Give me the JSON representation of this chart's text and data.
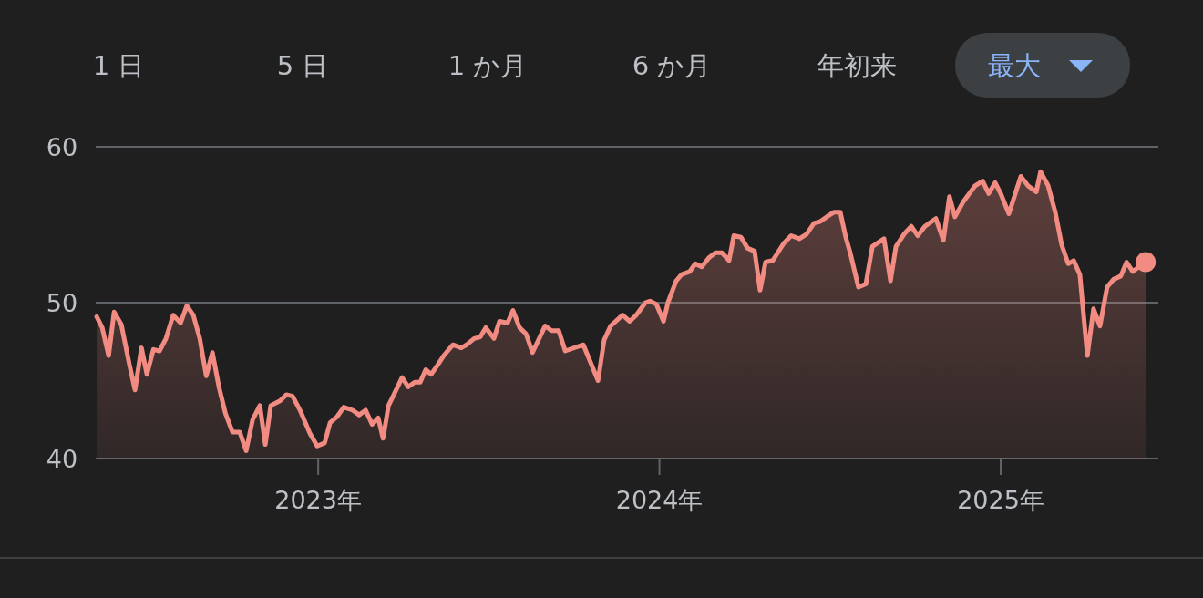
{
  "chart_data": {
    "type": "area",
    "annotations": [
      "1 日",
      "5 日",
      "1 か月",
      "6 か月",
      "年初来",
      "最大"
    ],
    "xlim": [
      2022.348,
      2025.462
    ],
    "xticks": [
      {
        "value": 2023,
        "label": "2023年"
      },
      {
        "value": 2024,
        "label": "2024年"
      },
      {
        "value": 2025,
        "label": "2025年"
      }
    ],
    "ylim": [
      40,
      60
    ],
    "yticks": [
      40,
      50,
      60
    ],
    "grid": "y",
    "series": [
      {
        "color": "#f28b82",
        "x": [
          2022.351,
          2022.367,
          2022.386,
          2022.402,
          2022.423,
          2022.447,
          2022.463,
          2022.482,
          2022.498,
          2022.517,
          2022.535,
          2022.554,
          2022.575,
          2022.597,
          2022.615,
          2022.634,
          2022.653,
          2022.672,
          2022.69,
          2022.709,
          2022.728,
          2022.749,
          2022.77,
          2022.789,
          2022.808,
          2022.829,
          2022.845,
          2022.861,
          2022.888,
          2022.907,
          2022.925,
          2022.949,
          2022.976,
          2022.997,
          2023.019,
          2023.035,
          2023.056,
          2023.075,
          2023.101,
          2023.12,
          2023.139,
          2023.158,
          2023.176,
          2023.19,
          2023.206,
          2023.224,
          2023.246,
          2023.264,
          2023.283,
          2023.299,
          2023.315,
          2023.331,
          2023.35,
          2023.368,
          2023.395,
          2023.419,
          2023.435,
          2023.457,
          2023.475,
          2023.491,
          2023.515,
          2023.531,
          2023.555,
          2023.571,
          2023.59,
          2023.609,
          2023.628,
          2023.665,
          2023.684,
          2023.705,
          2023.724,
          2023.777,
          2023.82,
          2023.838,
          2023.857,
          2023.892,
          2023.913,
          2023.932,
          2023.959,
          2023.972,
          2023.991,
          2024.012,
          2024.025,
          2024.049,
          2024.065,
          2024.089,
          2024.105,
          2024.124,
          2024.146,
          2024.164,
          2024.183,
          2024.204,
          2024.218,
          2024.239,
          2024.258,
          2024.279,
          2024.295,
          2024.311,
          2024.332,
          2024.364,
          2024.386,
          2024.41,
          2024.431,
          2024.453,
          2024.471,
          2024.49,
          2024.511,
          2024.53,
          2024.546,
          2024.559,
          2024.583,
          2024.605,
          2024.624,
          2024.658,
          2024.677,
          2024.693,
          2024.717,
          2024.738,
          2024.757,
          2024.778,
          2024.81,
          2024.832,
          2024.85,
          2024.866,
          2024.891,
          2024.925,
          2024.947,
          2024.965,
          2024.984,
          2025.0,
          2025.024,
          2025.059,
          2025.08,
          2025.104,
          2025.117,
          2025.139,
          2025.16,
          2025.179,
          2025.198,
          2025.214,
          2025.232,
          2025.254,
          2025.272,
          2025.291,
          2025.312,
          2025.331,
          2025.352,
          2025.369,
          2025.387,
          2025.425
        ],
        "values": [
          49.1,
          48.4,
          46.6,
          49.4,
          48.6,
          46.0,
          44.4,
          47.1,
          45.4,
          47.0,
          46.9,
          47.7,
          49.2,
          48.7,
          49.8,
          49.2,
          47.7,
          45.3,
          46.8,
          44.6,
          42.9,
          41.7,
          41.7,
          40.5,
          42.5,
          43.4,
          40.9,
          43.4,
          43.7,
          44.1,
          44.0,
          43.0,
          41.6,
          40.8,
          41.0,
          42.3,
          42.7,
          43.3,
          43.1,
          42.8,
          43.1,
          42.2,
          42.6,
          41.3,
          43.4,
          44.2,
          45.2,
          44.6,
          44.9,
          44.9,
          45.7,
          45.4,
          46.0,
          46.6,
          47.3,
          47.1,
          47.3,
          47.7,
          47.8,
          48.4,
          47.7,
          48.8,
          48.7,
          49.5,
          48.4,
          48.0,
          46.8,
          48.5,
          48.2,
          48.2,
          46.9,
          47.3,
          45.0,
          47.6,
          48.5,
          49.2,
          48.8,
          49.2,
          50.0,
          50.1,
          49.9,
          48.8,
          50.0,
          51.4,
          51.8,
          52.0,
          52.5,
          52.3,
          52.9,
          53.2,
          53.2,
          52.7,
          54.3,
          54.2,
          53.5,
          53.3,
          50.8,
          52.6,
          52.7,
          53.8,
          54.3,
          54.1,
          54.4,
          55.1,
          55.2,
          55.5,
          55.8,
          55.8,
          54.2,
          53.2,
          51.0,
          51.2,
          53.6,
          54.1,
          51.4,
          53.6,
          54.4,
          54.9,
          54.3,
          54.9,
          55.4,
          54.0,
          56.8,
          55.5,
          56.5,
          57.5,
          57.8,
          57.0,
          57.7,
          57.0,
          55.7,
          58.1,
          57.5,
          57.1,
          58.4,
          57.5,
          55.8,
          53.7,
          52.5,
          52.7,
          51.8,
          46.6,
          49.6,
          48.5,
          51.0,
          51.5,
          51.7,
          52.6,
          52.0,
          52.6
        ]
      }
    ]
  }
}
